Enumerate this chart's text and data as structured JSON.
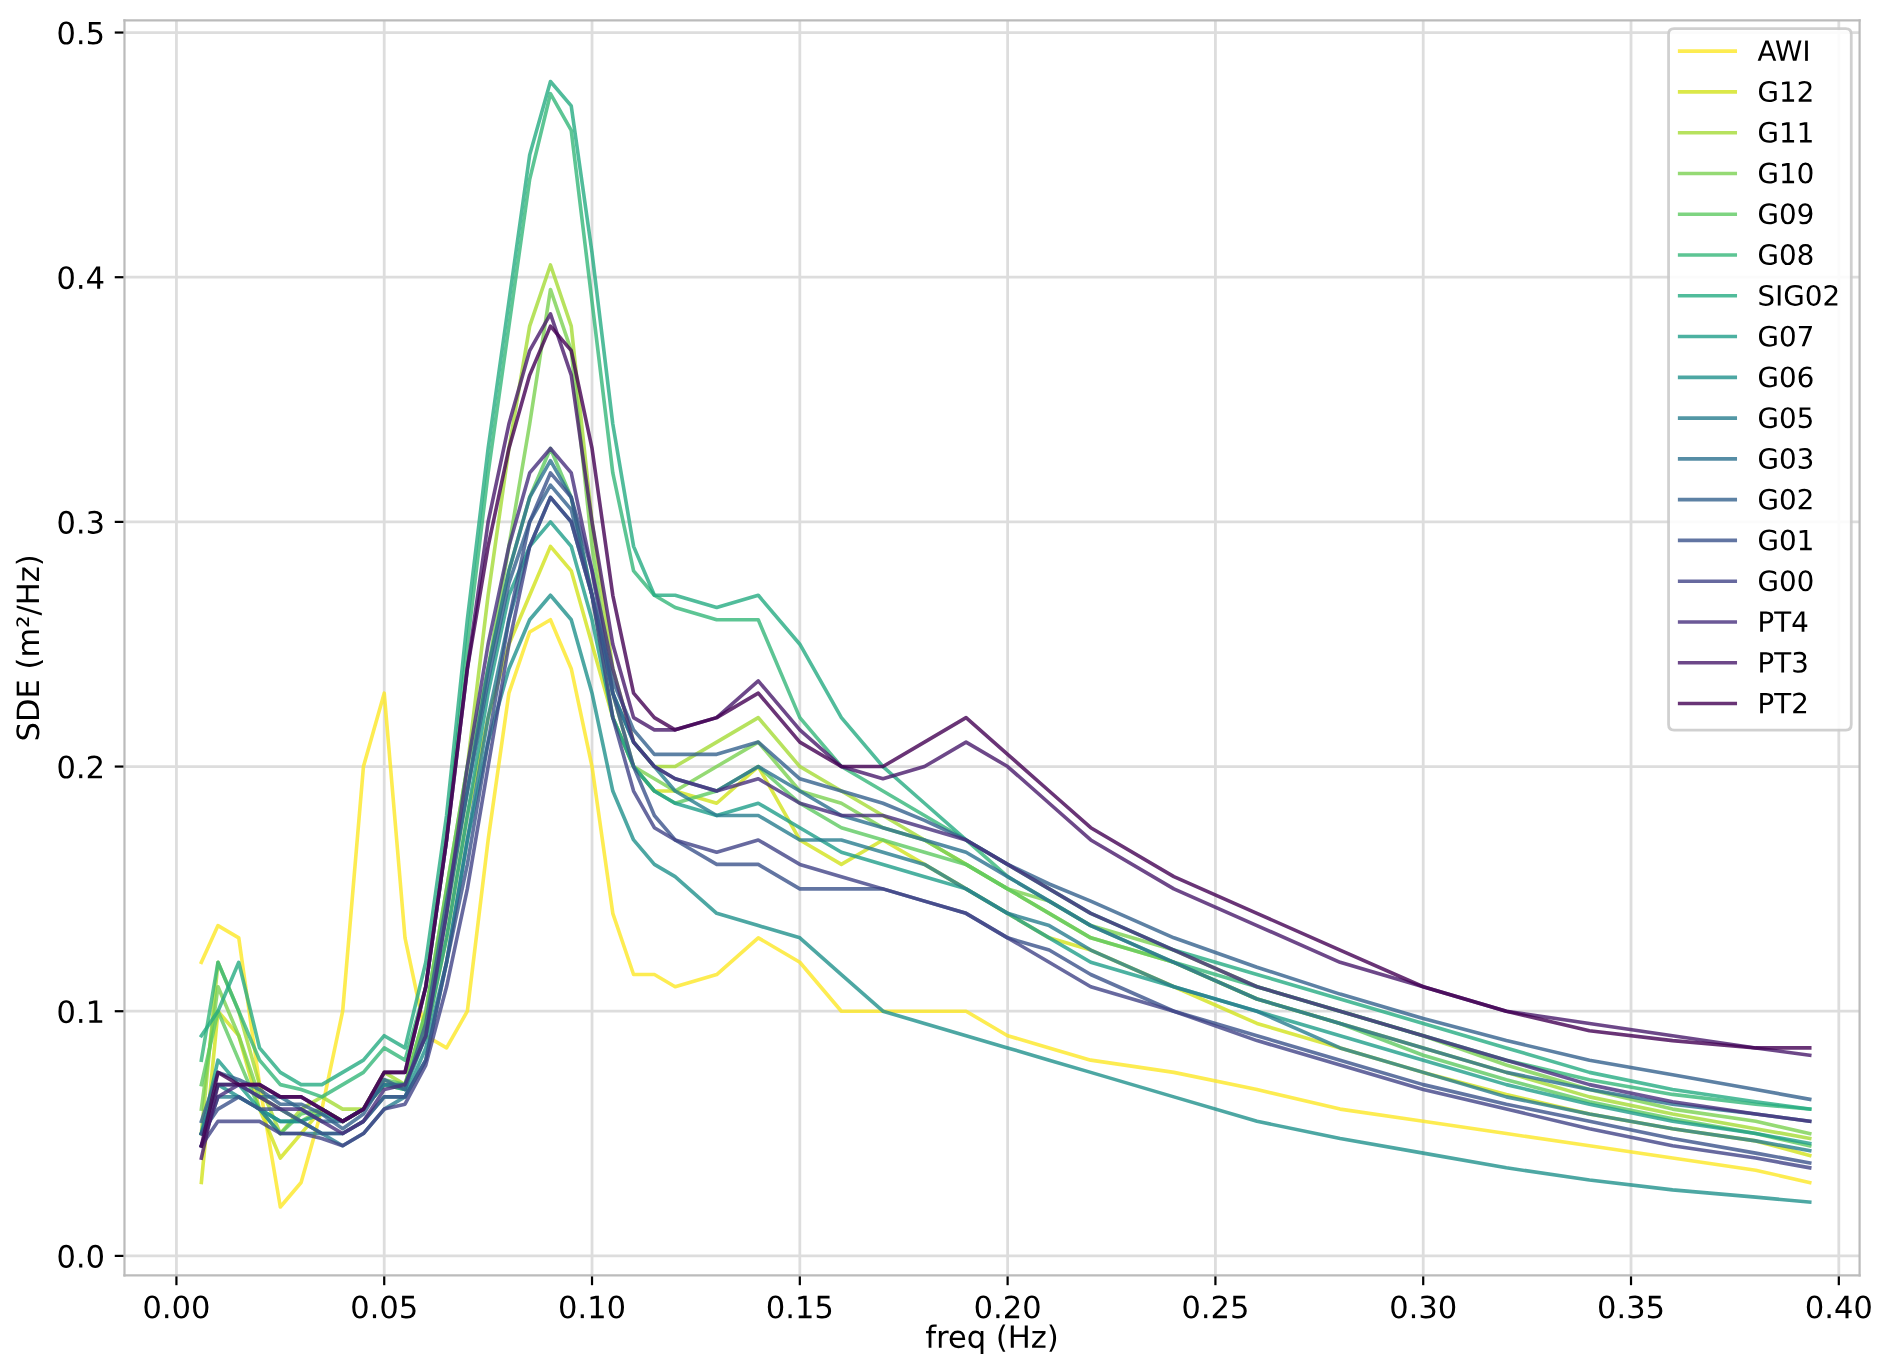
{
  "chart_data": {
    "type": "line",
    "xlabel": "freq (Hz)",
    "ylabel": "SDE (m²/Hz)",
    "x": [
      0.006,
      0.01,
      0.015,
      0.02,
      0.025,
      0.03,
      0.035,
      0.04,
      0.045,
      0.05,
      0.055,
      0.06,
      0.065,
      0.07,
      0.075,
      0.08,
      0.085,
      0.09,
      0.095,
      0.1,
      0.105,
      0.11,
      0.115,
      0.12,
      0.13,
      0.14,
      0.15,
      0.16,
      0.17,
      0.18,
      0.19,
      0.2,
      0.21,
      0.22,
      0.24,
      0.26,
      0.28,
      0.3,
      0.32,
      0.34,
      0.36,
      0.38,
      0.393
    ],
    "series": [
      {
        "name": "AWI",
        "color": "#fde725",
        "values": [
          0.12,
          0.135,
          0.13,
          0.07,
          0.02,
          0.03,
          0.06,
          0.1,
          0.2,
          0.23,
          0.13,
          0.09,
          0.085,
          0.1,
          0.17,
          0.23,
          0.255,
          0.26,
          0.24,
          0.2,
          0.14,
          0.115,
          0.115,
          0.11,
          0.115,
          0.13,
          0.12,
          0.1,
          0.1,
          0.1,
          0.1,
          0.09,
          0.085,
          0.08,
          0.075,
          0.068,
          0.06,
          0.055,
          0.05,
          0.045,
          0.04,
          0.035,
          0.03
        ]
      },
      {
        "name": "G12",
        "color": "#d2e21b",
        "values": [
          0.03,
          0.1,
          0.09,
          0.06,
          0.04,
          0.05,
          0.06,
          0.055,
          0.06,
          0.07,
          0.07,
          0.09,
          0.13,
          0.18,
          0.22,
          0.25,
          0.27,
          0.29,
          0.28,
          0.25,
          0.22,
          0.2,
          0.19,
          0.19,
          0.185,
          0.2,
          0.17,
          0.16,
          0.17,
          0.16,
          0.15,
          0.14,
          0.13,
          0.125,
          0.11,
          0.095,
          0.085,
          0.075,
          0.066,
          0.058,
          0.052,
          0.047,
          0.041
        ]
      },
      {
        "name": "G11",
        "color": "#a5db36",
        "values": [
          0.05,
          0.12,
          0.1,
          0.07,
          0.05,
          0.06,
          0.065,
          0.06,
          0.06,
          0.075,
          0.07,
          0.1,
          0.15,
          0.2,
          0.27,
          0.33,
          0.38,
          0.405,
          0.38,
          0.3,
          0.24,
          0.21,
          0.2,
          0.2,
          0.21,
          0.22,
          0.2,
          0.19,
          0.18,
          0.17,
          0.16,
          0.15,
          0.14,
          0.13,
          0.12,
          0.105,
          0.095,
          0.085,
          0.075,
          0.065,
          0.058,
          0.052,
          0.048
        ]
      },
      {
        "name": "G10",
        "color": "#7ad151",
        "values": [
          0.06,
          0.11,
          0.09,
          0.065,
          0.06,
          0.055,
          0.06,
          0.055,
          0.06,
          0.07,
          0.068,
          0.095,
          0.14,
          0.19,
          0.24,
          0.29,
          0.34,
          0.395,
          0.37,
          0.29,
          0.23,
          0.2,
          0.195,
          0.19,
          0.2,
          0.21,
          0.19,
          0.185,
          0.175,
          0.17,
          0.16,
          0.15,
          0.145,
          0.135,
          0.125,
          0.11,
          0.1,
          0.09,
          0.078,
          0.068,
          0.06,
          0.055,
          0.05
        ]
      },
      {
        "name": "G09",
        "color": "#5ec962",
        "values": [
          0.07,
          0.1,
          0.08,
          0.06,
          0.05,
          0.058,
          0.06,
          0.055,
          0.06,
          0.072,
          0.07,
          0.1,
          0.15,
          0.2,
          0.24,
          0.28,
          0.31,
          0.33,
          0.31,
          0.27,
          0.22,
          0.2,
          0.19,
          0.185,
          0.19,
          0.2,
          0.185,
          0.175,
          0.17,
          0.165,
          0.16,
          0.15,
          0.14,
          0.13,
          0.12,
          0.105,
          0.095,
          0.082,
          0.072,
          0.063,
          0.056,
          0.05,
          0.045
        ]
      },
      {
        "name": "G08",
        "color": "#35b779",
        "values": [
          0.08,
          0.12,
          0.1,
          0.08,
          0.07,
          0.068,
          0.065,
          0.07,
          0.075,
          0.085,
          0.08,
          0.11,
          0.17,
          0.25,
          0.32,
          0.38,
          0.44,
          0.475,
          0.46,
          0.39,
          0.32,
          0.28,
          0.27,
          0.265,
          0.26,
          0.26,
          0.22,
          0.2,
          0.19,
          0.18,
          0.17,
          0.155,
          0.145,
          0.135,
          0.12,
          0.11,
          0.1,
          0.09,
          0.08,
          0.072,
          0.066,
          0.062,
          0.06
        ]
      },
      {
        "name": "SIG02",
        "color": "#25ab82",
        "values": [
          0.09,
          0.1,
          0.12,
          0.085,
          0.075,
          0.07,
          0.07,
          0.075,
          0.08,
          0.09,
          0.085,
          0.12,
          0.18,
          0.26,
          0.33,
          0.39,
          0.45,
          0.48,
          0.47,
          0.41,
          0.34,
          0.29,
          0.27,
          0.27,
          0.265,
          0.27,
          0.25,
          0.22,
          0.2,
          0.185,
          0.17,
          0.16,
          0.15,
          0.14,
          0.125,
          0.115,
          0.105,
          0.095,
          0.085,
          0.075,
          0.068,
          0.063,
          0.06
        ]
      },
      {
        "name": "G07",
        "color": "#1f9e89",
        "values": [
          0.05,
          0.08,
          0.07,
          0.06,
          0.055,
          0.055,
          0.058,
          0.055,
          0.06,
          0.07,
          0.068,
          0.09,
          0.13,
          0.18,
          0.23,
          0.27,
          0.29,
          0.3,
          0.29,
          0.26,
          0.22,
          0.2,
          0.19,
          0.185,
          0.18,
          0.185,
          0.175,
          0.165,
          0.16,
          0.155,
          0.15,
          0.14,
          0.13,
          0.12,
          0.11,
          0.1,
          0.09,
          0.08,
          0.07,
          0.062,
          0.055,
          0.05,
          0.046
        ]
      },
      {
        "name": "G06",
        "color": "#21918c",
        "values": [
          0.05,
          0.07,
          0.065,
          0.06,
          0.055,
          0.055,
          0.05,
          0.05,
          0.055,
          0.065,
          0.065,
          0.085,
          0.12,
          0.17,
          0.21,
          0.24,
          0.26,
          0.27,
          0.26,
          0.23,
          0.19,
          0.17,
          0.16,
          0.155,
          0.14,
          0.135,
          0.13,
          0.115,
          0.1,
          0.095,
          0.09,
          0.085,
          0.08,
          0.075,
          0.065,
          0.055,
          0.048,
          0.042,
          0.036,
          0.031,
          0.027,
          0.024,
          0.022
        ]
      },
      {
        "name": "G05",
        "color": "#287d8e",
        "values": [
          0.045,
          0.065,
          0.065,
          0.06,
          0.05,
          0.05,
          0.05,
          0.045,
          0.05,
          0.06,
          0.065,
          0.08,
          0.12,
          0.17,
          0.22,
          0.26,
          0.29,
          0.31,
          0.3,
          0.27,
          0.23,
          0.21,
          0.2,
          0.19,
          0.18,
          0.18,
          0.17,
          0.17,
          0.165,
          0.16,
          0.15,
          0.14,
          0.135,
          0.125,
          0.11,
          0.1,
          0.085,
          0.075,
          0.065,
          0.058,
          0.052,
          0.047,
          0.043
        ]
      },
      {
        "name": "G03",
        "color": "#2c718e",
        "values": [
          0.05,
          0.07,
          0.07,
          0.065,
          0.065,
          0.06,
          0.055,
          0.055,
          0.06,
          0.07,
          0.07,
          0.09,
          0.14,
          0.19,
          0.24,
          0.28,
          0.31,
          0.325,
          0.31,
          0.27,
          0.23,
          0.21,
          0.2,
          0.195,
          0.19,
          0.2,
          0.19,
          0.18,
          0.175,
          0.17,
          0.165,
          0.155,
          0.145,
          0.135,
          0.12,
          0.105,
          0.095,
          0.085,
          0.075,
          0.068,
          0.062,
          0.058,
          0.055
        ]
      },
      {
        "name": "G02",
        "color": "#34618d",
        "values": [
          0.055,
          0.075,
          0.072,
          0.068,
          0.062,
          0.062,
          0.058,
          0.052,
          0.058,
          0.072,
          0.068,
          0.095,
          0.145,
          0.19,
          0.235,
          0.275,
          0.3,
          0.315,
          0.305,
          0.27,
          0.235,
          0.215,
          0.205,
          0.205,
          0.205,
          0.21,
          0.195,
          0.19,
          0.185,
          0.178,
          0.17,
          0.16,
          0.152,
          0.145,
          0.13,
          0.118,
          0.107,
          0.097,
          0.088,
          0.08,
          0.074,
          0.068,
          0.064
        ]
      },
      {
        "name": "G01",
        "color": "#3b528b",
        "values": [
          0.05,
          0.06,
          0.065,
          0.06,
          0.06,
          0.055,
          0.05,
          0.05,
          0.055,
          0.065,
          0.065,
          0.08,
          0.12,
          0.16,
          0.21,
          0.26,
          0.3,
          0.32,
          0.31,
          0.28,
          0.23,
          0.2,
          0.18,
          0.17,
          0.16,
          0.16,
          0.15,
          0.15,
          0.15,
          0.145,
          0.14,
          0.13,
          0.125,
          0.115,
          0.1,
          0.09,
          0.08,
          0.07,
          0.062,
          0.055,
          0.048,
          0.042,
          0.038
        ]
      },
      {
        "name": "G00",
        "color": "#414487",
        "values": [
          0.045,
          0.055,
          0.055,
          0.055,
          0.05,
          0.05,
          0.048,
          0.045,
          0.05,
          0.06,
          0.062,
          0.078,
          0.11,
          0.15,
          0.2,
          0.25,
          0.29,
          0.31,
          0.3,
          0.27,
          0.22,
          0.19,
          0.175,
          0.17,
          0.165,
          0.17,
          0.16,
          0.155,
          0.15,
          0.145,
          0.14,
          0.13,
          0.12,
          0.11,
          0.1,
          0.088,
          0.078,
          0.068,
          0.06,
          0.052,
          0.045,
          0.04,
          0.036
        ]
      },
      {
        "name": "PT4",
        "color": "#472f7d",
        "values": [
          0.045,
          0.065,
          0.07,
          0.065,
          0.06,
          0.06,
          0.055,
          0.05,
          0.055,
          0.068,
          0.07,
          0.09,
          0.14,
          0.2,
          0.25,
          0.29,
          0.32,
          0.33,
          0.32,
          0.28,
          0.24,
          0.21,
          0.2,
          0.195,
          0.19,
          0.195,
          0.185,
          0.18,
          0.18,
          0.175,
          0.17,
          0.16,
          0.15,
          0.14,
          0.125,
          0.11,
          0.1,
          0.09,
          0.08,
          0.07,
          0.063,
          0.058,
          0.055
        ]
      },
      {
        "name": "PT3",
        "color": "#481a6c",
        "values": [
          0.04,
          0.07,
          0.07,
          0.07,
          0.065,
          0.065,
          0.06,
          0.055,
          0.06,
          0.075,
          0.075,
          0.11,
          0.17,
          0.24,
          0.3,
          0.34,
          0.37,
          0.385,
          0.36,
          0.3,
          0.25,
          0.22,
          0.215,
          0.215,
          0.22,
          0.235,
          0.215,
          0.2,
          0.195,
          0.2,
          0.21,
          0.2,
          0.185,
          0.17,
          0.15,
          0.135,
          0.12,
          0.11,
          0.1,
          0.095,
          0.09,
          0.085,
          0.082
        ]
      },
      {
        "name": "PT2",
        "color": "#440154",
        "values": [
          0.045,
          0.075,
          0.07,
          0.07,
          0.065,
          0.065,
          0.06,
          0.055,
          0.06,
          0.075,
          0.075,
          0.11,
          0.17,
          0.24,
          0.29,
          0.33,
          0.36,
          0.38,
          0.37,
          0.33,
          0.27,
          0.23,
          0.22,
          0.215,
          0.22,
          0.23,
          0.21,
          0.2,
          0.2,
          0.21,
          0.22,
          0.205,
          0.19,
          0.175,
          0.155,
          0.14,
          0.125,
          0.11,
          0.1,
          0.092,
          0.088,
          0.085,
          0.085
        ]
      }
    ],
    "xlim": [
      -0.0125,
      0.405
    ],
    "ylim": [
      -0.008,
      0.505
    ],
    "xticks": [
      {
        "value": 0,
        "label": "0.00"
      },
      0.05,
      {
        "value": 0.1,
        "label": "0.10"
      },
      0.15,
      {
        "value": 0.2,
        "label": "0.20"
      },
      0.25,
      {
        "value": 0.3,
        "label": "0.30"
      },
      0.35,
      {
        "value": 0.4,
        "label": "0.40"
      }
    ],
    "yticks": [
      {
        "value": 0,
        "label": "0.0"
      },
      0.1,
      0.2,
      0.3,
      0.4,
      0.5
    ],
    "grid": true,
    "legend": "top right",
    "marker": "none",
    "line_style": "solid"
  }
}
